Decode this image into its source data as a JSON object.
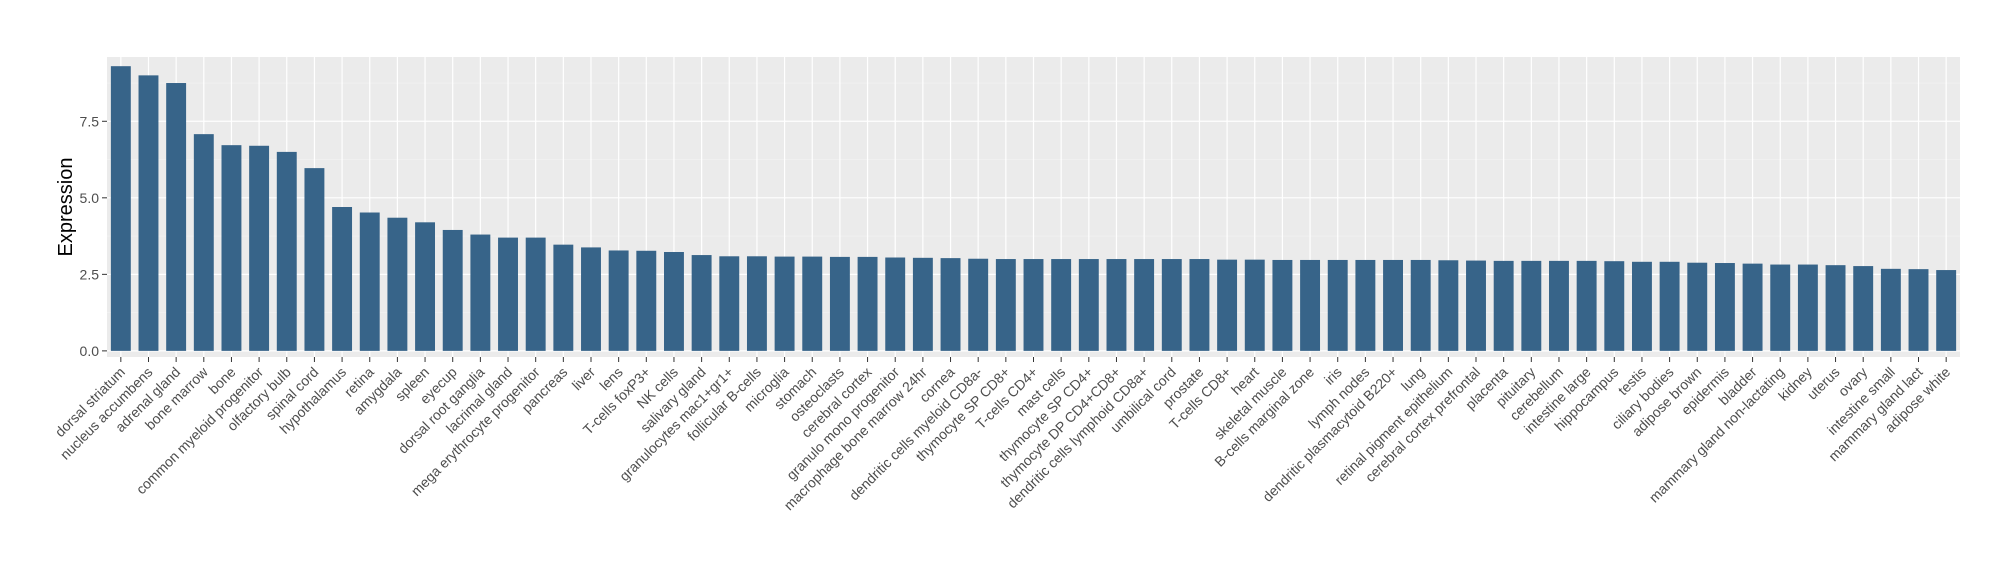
{
  "chart_data": {
    "type": "bar",
    "title": "",
    "xlabel": "",
    "ylabel": "Expression",
    "ylim": [
      -0.2,
      9.6
    ],
    "yticks": [
      0.0,
      2.5,
      5.0,
      7.5
    ],
    "ytick_labels": [
      "0.0",
      "2.5",
      "5.0",
      "7.5"
    ],
    "grid": true,
    "bar_color": "#376489",
    "panel_color": "#ebebeb",
    "categories": [
      "dorsal striatum",
      "nucleus accumbens",
      "adrenal gland",
      "bone marrow",
      "bone",
      "common myeloid progenitor",
      "olfactory bulb",
      "spinal cord",
      "hypothalamus",
      "retina",
      "amygdala",
      "spleen",
      "eyecup",
      "dorsal root ganglia",
      "lacrimal gland",
      "mega erythrocyte progenitor",
      "pancreas",
      "liver",
      "lens",
      "T-cells foxP3+",
      "NK cells",
      "salivary gland",
      "granulocytes mac1+gr1+",
      "follicular B-cells",
      "microglia",
      "stomach",
      "osteoclasts",
      "cerebral cortex",
      "granulo mono progenitor",
      "macrophage bone marrow 24hr",
      "cornea",
      "dendritic cells myeloid CD8a-",
      "thymocyte SP CD8+",
      "T-cells CD4+",
      "mast cells",
      "thymocyte SP CD4+",
      "thymocyte DP CD4+CD8+",
      "dendritic cells lymphoid CD8a+",
      "umbilical cord",
      "prostate",
      "T-cells CD8+",
      "heart",
      "skeletal muscle",
      "B-cells marginal zone",
      "iris",
      "lymph nodes",
      "dendritic plasmacytoid B220+",
      "lung",
      "retinal pigment epithelium",
      "cerebral cortex prefrontal",
      "placenta",
      "pituitary",
      "cerebellum",
      "intestine large",
      "hippocampus",
      "testis",
      "ciliary bodies",
      "adipose brown",
      "epidermis",
      "bladder",
      "mammary gland non-lactating",
      "kidney",
      "uterus",
      "ovary",
      "intestine small",
      "mammary gland lact",
      "adipose white"
    ],
    "values": [
      9.3,
      9.0,
      8.75,
      7.08,
      6.72,
      6.7,
      6.5,
      5.97,
      4.7,
      4.52,
      4.35,
      4.2,
      3.95,
      3.8,
      3.7,
      3.7,
      3.47,
      3.38,
      3.28,
      3.27,
      3.23,
      3.13,
      3.09,
      3.09,
      3.08,
      3.08,
      3.07,
      3.07,
      3.05,
      3.04,
      3.03,
      3.01,
      3.0,
      3.0,
      3.0,
      3.0,
      3.0,
      3.0,
      3.0,
      3.0,
      2.98,
      2.98,
      2.97,
      2.97,
      2.97,
      2.97,
      2.97,
      2.97,
      2.96,
      2.95,
      2.94,
      2.94,
      2.94,
      2.94,
      2.93,
      2.91,
      2.91,
      2.88,
      2.87,
      2.85,
      2.82,
      2.82,
      2.8,
      2.77,
      2.68,
      2.67,
      2.64
    ]
  }
}
